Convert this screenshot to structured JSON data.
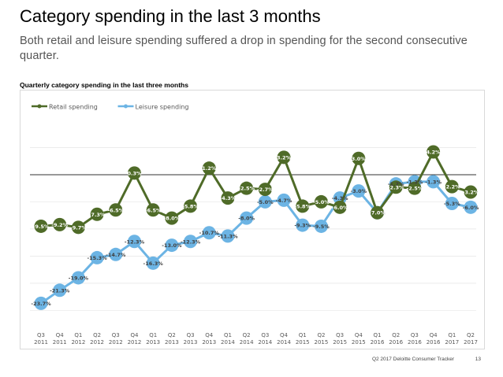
{
  "page": {
    "title": "Category spending in the last 3 months",
    "subtitle": "Both retail and leisure spending suffered a drop in spending for the second consecutive quarter.",
    "footer": "Q2 2017 Deloitte Consumer Tracker",
    "page_number": "13"
  },
  "chart_data": {
    "type": "line",
    "title": "Quarterly category spending in the last three months",
    "xlabel": "",
    "ylabel": "",
    "ylim": [
      -28,
      10
    ],
    "zero_line": 0,
    "legend_position": "top-left",
    "categories": [
      [
        "Q3",
        "2011"
      ],
      [
        "Q4",
        "2011"
      ],
      [
        "Q1",
        "2012"
      ],
      [
        "Q2",
        "2012"
      ],
      [
        "Q3",
        "2012"
      ],
      [
        "Q4",
        "2012"
      ],
      [
        "Q1",
        "2013"
      ],
      [
        "Q2",
        "2013"
      ],
      [
        "Q3",
        "2013"
      ],
      [
        "Q4",
        "2013"
      ],
      [
        "Q1",
        "2014"
      ],
      [
        "Q2",
        "2014"
      ],
      [
        "Q3",
        "2014"
      ],
      [
        "Q4",
        "2014"
      ],
      [
        "Q1",
        "2015"
      ],
      [
        "Q2",
        "2015"
      ],
      [
        "Q3",
        "2015"
      ],
      [
        "Q4",
        "2015"
      ],
      [
        "Q1",
        "2016"
      ],
      [
        "Q2",
        "2016"
      ],
      [
        "Q3",
        "2016"
      ],
      [
        "Q4",
        "2016"
      ],
      [
        "Q1",
        "2017"
      ],
      [
        "Q2",
        "2017"
      ]
    ],
    "series": [
      {
        "name": "Retail spending",
        "color": "#4f6b28",
        "values": [
          -9.5,
          -9.2,
          -9.7,
          -7.3,
          -6.5,
          0.3,
          -6.5,
          -8.0,
          -5.8,
          1.2,
          -4.3,
          -2.5,
          -2.7,
          3.2,
          -5.8,
          -5.0,
          -6.0,
          3.0,
          -7.0,
          -2.3,
          -2.5,
          4.2,
          -2.2,
          -3.2
        ],
        "labels": [
          "-9.5%",
          "-9.2%",
          "-9.7%",
          "-7.3%",
          "-6.5%",
          "0.3%",
          "-6.5%",
          "-8.0%",
          "-5.8%",
          "1.2%",
          "-4.3%",
          "-2.5%",
          "-2.7%",
          "3.2%",
          "-5.8%",
          "-5.0%",
          "-6.0%",
          "3.0%",
          "-7.0%",
          "-2.3%",
          "-2.5%",
          "4.2%",
          "-2.2%",
          "-3.2%"
        ]
      },
      {
        "name": "Leisure spending",
        "color": "#6cb4e4",
        "values": [
          -23.7,
          -21.3,
          -19.0,
          -15.3,
          -14.7,
          -12.3,
          -16.3,
          -13.0,
          -12.3,
          -10.7,
          -11.3,
          -8.0,
          -5.0,
          -4.7,
          -9.3,
          -9.5,
          -4.3,
          -3.0,
          -7.0,
          -1.7,
          -1.3,
          -1.3,
          -5.3,
          -6.0
        ],
        "labels": [
          "-23.7%",
          "-21.3%",
          "-19.0%",
          "-15.3%",
          "-14.7%",
          "-12.3%",
          "-16.3%",
          "-13.0%",
          "-12.3%",
          "-10.7%",
          "-11.3%",
          "-8.0%",
          "-5.0%",
          "-4.7%",
          "-9.3%",
          "-9.5%",
          "-4.3%",
          "-3.0%",
          "-7.0%",
          "-1.7%",
          "-1.3%",
          "-1.3%",
          "-5.3%",
          "-6.0%"
        ]
      }
    ]
  }
}
